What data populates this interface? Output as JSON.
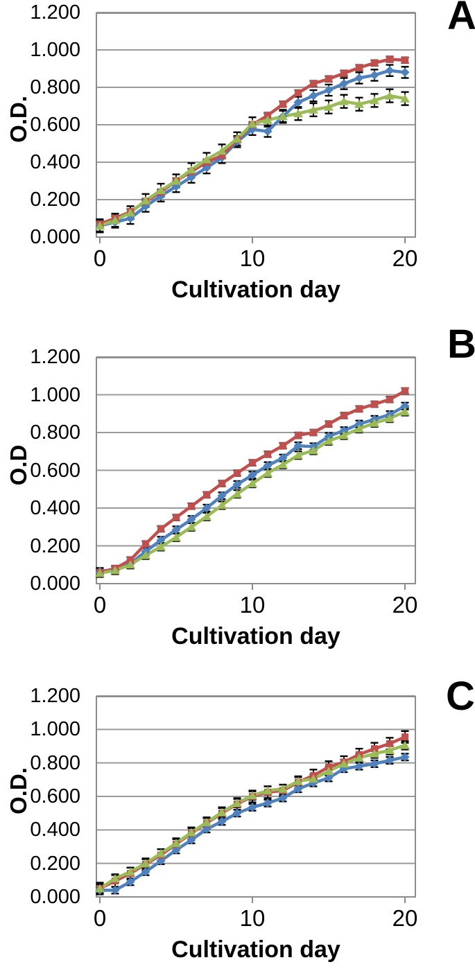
{
  "figure": {
    "background": "#ffffff",
    "description_visible_text_only": true
  },
  "style": {
    "gridline_color": "#9a9a9a",
    "axis_color": "#8c8c8c",
    "error_bar_color": "#000000",
    "text_color": "#000000"
  },
  "chart_data": [
    {
      "type": "line",
      "panel_label": "A",
      "xlabel": "Cultivation day",
      "ylabel": "O.D.",
      "x": [
        0,
        1,
        2,
        3,
        4,
        5,
        6,
        7,
        8,
        9,
        10,
        11,
        12,
        13,
        14,
        15,
        16,
        17,
        18,
        19,
        20
      ],
      "xlim": [
        0,
        20
      ],
      "ylim": [
        0,
        1.2
      ],
      "xticks": [
        0,
        10,
        20
      ],
      "xtick_labels": [
        "0",
        "10",
        "20"
      ],
      "ytick_values": [
        0,
        0.2,
        0.4,
        0.6,
        0.8,
        1.0,
        1.2
      ],
      "ytick_labels": [
        "0.000",
        "0.200",
        "0.400",
        "0.600",
        "0.800",
        "1.000",
        "1.200"
      ],
      "grid": "horizontal",
      "legend": "none",
      "series": [
        {
          "name": "blue-diamond-series",
          "color": "#4F81BD",
          "marker": "diamond",
          "error_bar": 0.03,
          "values": [
            0.06,
            0.08,
            0.1,
            0.165,
            0.22,
            0.27,
            0.32,
            0.37,
            0.425,
            0.51,
            0.575,
            0.565,
            0.645,
            0.72,
            0.755,
            0.785,
            0.82,
            0.85,
            0.865,
            0.89,
            0.88
          ]
        },
        {
          "name": "red-square-series",
          "color": "#C0504D",
          "marker": "square",
          "error_bar": 0.015,
          "values": [
            0.07,
            0.1,
            0.135,
            0.19,
            0.24,
            0.3,
            0.35,
            0.4,
            0.435,
            0.52,
            0.6,
            0.65,
            0.71,
            0.77,
            0.82,
            0.845,
            0.875,
            0.905,
            0.93,
            0.95,
            0.945
          ]
        },
        {
          "name": "green-triangle-series",
          "color": "#9BBB59",
          "marker": "triangle",
          "error_bar": 0.035,
          "values": [
            0.06,
            0.09,
            0.13,
            0.195,
            0.25,
            0.3,
            0.36,
            0.415,
            0.46,
            0.525,
            0.605,
            0.625,
            0.645,
            0.66,
            0.68,
            0.695,
            0.725,
            0.71,
            0.73,
            0.755,
            0.74
          ]
        }
      ]
    },
    {
      "type": "line",
      "panel_label": "B",
      "xlabel": "Cultivation day",
      "ylabel": "O.D",
      "x": [
        0,
        1,
        2,
        3,
        4,
        5,
        6,
        7,
        8,
        9,
        10,
        11,
        12,
        13,
        14,
        15,
        16,
        17,
        18,
        19,
        20
      ],
      "xlim": [
        0,
        20
      ],
      "ylim": [
        0,
        1.2
      ],
      "xticks": [
        0,
        10,
        20
      ],
      "xtick_labels": [
        "0",
        "10",
        "20"
      ],
      "ytick_values": [
        0,
        0.2,
        0.4,
        0.6,
        0.8,
        1.0,
        1.2
      ],
      "ytick_labels": [
        "0.000",
        "0.200",
        "0.400",
        "0.600",
        "0.800",
        "1.000",
        "1.200"
      ],
      "grid": "horizontal",
      "legend": "none",
      "series": [
        {
          "name": "blue-diamond-series",
          "color": "#4F81BD",
          "marker": "diamond",
          "error_bar": 0.018,
          "values": [
            0.065,
            0.075,
            0.105,
            0.17,
            0.23,
            0.285,
            0.34,
            0.4,
            0.465,
            0.525,
            0.575,
            0.625,
            0.665,
            0.73,
            0.725,
            0.78,
            0.81,
            0.845,
            0.87,
            0.895,
            0.94
          ]
        },
        {
          "name": "red-square-series",
          "color": "#C0504D",
          "marker": "square",
          "error_bar": 0.015,
          "values": [
            0.06,
            0.08,
            0.125,
            0.21,
            0.29,
            0.35,
            0.41,
            0.47,
            0.53,
            0.585,
            0.64,
            0.685,
            0.73,
            0.785,
            0.8,
            0.845,
            0.89,
            0.925,
            0.95,
            0.975,
            1.02
          ]
        },
        {
          "name": "green-triangle-series",
          "color": "#9BBB59",
          "marker": "triangle",
          "error_bar": 0.02,
          "values": [
            0.055,
            0.07,
            0.1,
            0.15,
            0.195,
            0.245,
            0.3,
            0.355,
            0.415,
            0.475,
            0.53,
            0.585,
            0.63,
            0.68,
            0.705,
            0.755,
            0.785,
            0.82,
            0.85,
            0.875,
            0.91
          ]
        }
      ]
    },
    {
      "type": "line",
      "panel_label": "C",
      "xlabel": "Cultivation day",
      "ylabel": "O.D.",
      "x": [
        0,
        1,
        2,
        3,
        4,
        5,
        6,
        7,
        8,
        9,
        10,
        11,
        12,
        13,
        14,
        15,
        16,
        17,
        18,
        19,
        20
      ],
      "xlim": [
        0,
        20
      ],
      "ylim": [
        0,
        1.2
      ],
      "xticks": [
        0,
        10,
        20
      ],
      "xtick_labels": [
        "0",
        "10",
        "20"
      ],
      "ytick_values": [
        0,
        0.2,
        0.4,
        0.6,
        0.8,
        1.0,
        1.2
      ],
      "ytick_labels": [
        "0.000",
        "0.200",
        "0.400",
        "0.600",
        "0.800",
        "1.000",
        "1.200"
      ],
      "grid": "horizontal",
      "legend": "none",
      "series": [
        {
          "name": "blue-diamond-series",
          "color": "#4F81BD",
          "marker": "diamond",
          "error_bar": 0.02,
          "values": [
            0.04,
            0.04,
            0.09,
            0.15,
            0.215,
            0.28,
            0.34,
            0.405,
            0.45,
            0.5,
            0.535,
            0.56,
            0.59,
            0.645,
            0.68,
            0.71,
            0.765,
            0.78,
            0.795,
            0.815,
            0.835
          ]
        },
        {
          "name": "red-square-series",
          "color": "#C0504D",
          "marker": "square",
          "error_bar": 0.035,
          "values": [
            0.05,
            0.095,
            0.14,
            0.195,
            0.25,
            0.315,
            0.38,
            0.44,
            0.5,
            0.555,
            0.6,
            0.625,
            0.635,
            0.685,
            0.725,
            0.775,
            0.805,
            0.85,
            0.885,
            0.915,
            0.955
          ]
        },
        {
          "name": "green-triangle-series",
          "color": "#9BBB59",
          "marker": "triangle",
          "error_bar": 0.025,
          "values": [
            0.05,
            0.11,
            0.15,
            0.2,
            0.26,
            0.32,
            0.385,
            0.445,
            0.505,
            0.56,
            0.605,
            0.635,
            0.645,
            0.69,
            0.705,
            0.75,
            0.795,
            0.83,
            0.855,
            0.875,
            0.905
          ]
        }
      ]
    }
  ]
}
